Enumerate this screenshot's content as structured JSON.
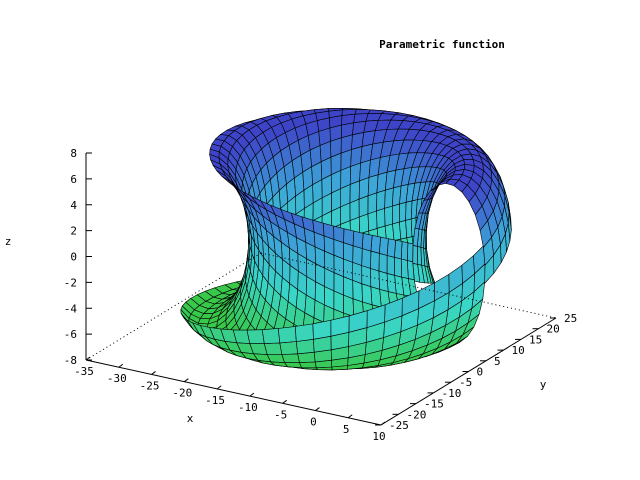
{
  "chart_data": {
    "type": "surface3d",
    "title": "Parametric function",
    "xlabel": "x",
    "ylabel": "y",
    "zlabel": "z",
    "xlim": [
      -35,
      10
    ],
    "ylim": [
      -25,
      25
    ],
    "zlim": [
      -8,
      8
    ],
    "x_ticks": [
      -35,
      -30,
      -25,
      -20,
      -15,
      -10,
      -5,
      0,
      5,
      10
    ],
    "y_ticks": [
      -25,
      -20,
      -15,
      -10,
      -5,
      0,
      5,
      10,
      15,
      20,
      25
    ],
    "z_ticks": [
      -8,
      -6,
      -4,
      -2,
      0,
      2,
      4,
      6,
      8
    ],
    "colormap": [
      "#38c84a",
      "#3ad6c8",
      "#3da4d8",
      "#3e44c8"
    ],
    "grid_line_color": "#000000"
  }
}
